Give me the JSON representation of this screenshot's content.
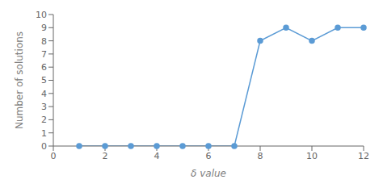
{
  "chart_data": {
    "type": "line",
    "x": [
      1,
      2,
      3,
      4,
      5,
      6,
      7,
      8,
      9,
      10,
      11,
      12
    ],
    "values": [
      0,
      0,
      0,
      0,
      0,
      0,
      0,
      8,
      9,
      8,
      9,
      9
    ],
    "color": "#5b9bd5",
    "xlabel": "δ value",
    "ylabel": "Number of solutions",
    "xlim": [
      0,
      12
    ],
    "ylim": [
      0,
      10
    ],
    "xticks": [
      0,
      2,
      4,
      6,
      8,
      10,
      12
    ],
    "yticks": [
      0,
      1,
      2,
      3,
      4,
      5,
      6,
      7,
      8,
      9,
      10
    ],
    "marker": "circle",
    "grid": false
  }
}
